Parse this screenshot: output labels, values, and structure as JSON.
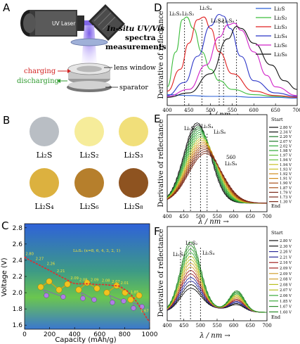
{
  "panels": {
    "A": {
      "letter": "A",
      "laser": "UV Laser",
      "title_line1": "In-situ UV/Vis",
      "title_line2": "spectra",
      "title_line3": "measurements",
      "lens_window": "lens window",
      "separator": "sparator",
      "charging": "charging",
      "discharging": "discharging"
    },
    "B": {
      "letter": "B",
      "swatches": [
        {
          "label": "Li₂S",
          "color": "#b9bec4"
        },
        {
          "label": "Li₂S₂",
          "color": "#f6ec9a"
        },
        {
          "label": "Li₂S₃",
          "color": "#f1df7a"
        },
        {
          "label": "Li₂S₄",
          "color": "#dcb13f"
        },
        {
          "label": "Li₂S₆",
          "color": "#b67f2c"
        },
        {
          "label": "Li₂S₈",
          "color": "#8e5320"
        }
      ]
    },
    "C": {
      "letter": "C",
      "formula": "Li₂Sₓ (x=8, 6, 4, 3, 2, 1)"
    },
    "D": {
      "letter": "D",
      "peak_labels": [
        "Li₂S₃",
        "Li₂S₂",
        "Li₂S₄",
        "Li₂S₆",
        "Li₂S₈"
      ]
    },
    "E": {
      "letter": "E",
      "peak_labels": [
        "Li₂S₃",
        "Li₂S₄",
        "Li₂S₆",
        "560",
        "Li₂S₈"
      ],
      "legend_title": "Start",
      "legend_end": "End",
      "voltages": [
        "2.80 V",
        "2.34 V",
        "2.20 V",
        "2.07 V",
        "2.02 V",
        "1.98 V",
        "1.97 V",
        "1.94 V",
        "1.94 V",
        "1.93 V",
        "1.92 V",
        "1.91 V",
        "1.90 V",
        "1.87 V",
        "1.79 V",
        "1.73 V",
        "1.30 V"
      ]
    },
    "F": {
      "letter": "F",
      "peak_labels": [
        "Li₂S₃",
        "Li₂S₂",
        "Li₂S₄"
      ],
      "legend_title": "Start",
      "legend_end": "End",
      "voltages": [
        "2.80 V",
        "2.30 V",
        "2.26 V",
        "2.21 V",
        "2.16 V",
        "2.09 V",
        "2.09 V",
        "2.08 V",
        "2.08 V",
        "2.07 V",
        "2.06 V",
        "1.85 V",
        "1.67 V",
        "1.60 V"
      ]
    }
  },
  "chart_data": [
    {
      "type": "line",
      "panel": "C",
      "xlabel": "Capacity (mAh/g)",
      "ylabel": "Voltage (V)",
      "xlim": [
        0,
        1000
      ],
      "ylim": [
        1.55,
        2.85
      ],
      "xticks": [
        "0",
        "200",
        "400",
        "600",
        "800",
        "1000"
      ],
      "yticks": [
        "1.6",
        "1.8",
        "2.0",
        "2.2",
        "2.4",
        "2.6",
        "2.8"
      ],
      "x": [
        0,
        40,
        80,
        130,
        180,
        240,
        300,
        340,
        380,
        420,
        460,
        520,
        580,
        640,
        700,
        760,
        820,
        860,
        900,
        940,
        980,
        1000
      ],
      "y": [
        2.44,
        2.4,
        2.37,
        2.33,
        2.29,
        2.24,
        2.19,
        2.16,
        2.12,
        2.11,
        2.11,
        2.11,
        2.1,
        2.1,
        2.09,
        2.08,
        2.02,
        1.96,
        1.88,
        1.78,
        1.68,
        1.64
      ],
      "markers": [
        {
          "x": 40,
          "y": 2.42,
          "label": "2.80"
        },
        {
          "x": 120,
          "y": 2.36,
          "label": "2.27"
        },
        {
          "x": 210,
          "y": 2.3,
          "label": "2.26"
        },
        {
          "x": 290,
          "y": 2.21,
          "label": "2.21"
        },
        {
          "x": 400,
          "y": 2.12,
          "label": "2.09"
        },
        {
          "x": 470,
          "y": 2.1,
          "label": "2.08"
        },
        {
          "x": 560,
          "y": 2.1,
          "label": "2.09"
        },
        {
          "x": 650,
          "y": 2.09,
          "label": "2.08"
        },
        {
          "x": 730,
          "y": 2.08,
          "label": "2.07"
        },
        {
          "x": 800,
          "y": 2.06,
          "label": "2.01"
        },
        {
          "x": 880,
          "y": 1.95,
          "label": "1.85"
        },
        {
          "x": 960,
          "y": 1.72,
          "label": "1.67"
        }
      ]
    },
    {
      "type": "line",
      "panel": "D",
      "xlabel": "λ / nm →",
      "ylabel": "Derivative of reflectance",
      "xlim": [
        400,
        700
      ],
      "xticks": [
        "400",
        "450",
        "500",
        "550",
        "600",
        "650",
        "700"
      ],
      "series": [
        {
          "name": "Li₂S",
          "color": "#2a5fd6",
          "x": [
            400,
            450,
            500,
            550,
            600,
            650,
            700
          ],
          "y": [
            0.06,
            0.05,
            0.04,
            0.04,
            0.03,
            0.03,
            0.02
          ]
        },
        {
          "name": "Li₂S₂",
          "color": "#3cbd3c",
          "x": [
            400,
            420,
            435,
            445,
            460,
            480,
            500,
            520,
            550,
            600,
            650,
            700
          ],
          "y": [
            0.15,
            0.55,
            0.92,
            0.95,
            0.82,
            0.55,
            0.35,
            0.22,
            0.12,
            0.06,
            0.04,
            0.03
          ]
        },
        {
          "name": "Li₂S₃",
          "color": "#e02020",
          "x": [
            400,
            430,
            450,
            470,
            485,
            500,
            520,
            550,
            600,
            650,
            700
          ],
          "y": [
            0.1,
            0.35,
            0.65,
            0.92,
            0.95,
            0.82,
            0.55,
            0.3,
            0.1,
            0.05,
            0.03
          ]
        },
        {
          "name": "Li₂S₄",
          "color": "#2b35c8",
          "x": [
            400,
            440,
            470,
            500,
            520,
            530,
            545,
            570,
            600,
            650,
            700
          ],
          "y": [
            0.05,
            0.2,
            0.5,
            0.85,
            0.98,
            0.96,
            0.82,
            0.5,
            0.22,
            0.08,
            0.04
          ]
        },
        {
          "name": "Li₂S₆",
          "color": "#d020c8",
          "x": [
            400,
            450,
            490,
            520,
            540,
            555,
            570,
            600,
            630,
            650,
            700
          ],
          "y": [
            0.04,
            0.12,
            0.4,
            0.72,
            0.86,
            0.88,
            0.8,
            0.55,
            0.28,
            0.15,
            0.05
          ]
        },
        {
          "name": "Li₂S₈",
          "color": "#111111",
          "x": [
            400,
            450,
            500,
            540,
            560,
            570,
            600,
            640,
            670,
            700
          ],
          "y": [
            0.03,
            0.08,
            0.3,
            0.7,
            0.84,
            0.82,
            0.65,
            0.4,
            0.22,
            0.12
          ]
        }
      ]
    },
    {
      "type": "line",
      "panel": "E",
      "xlabel": "λ / nm →",
      "ylabel": "Derivative of reflectance",
      "xlim": [
        400,
        700
      ],
      "xticks": [
        "400",
        "450",
        "500",
        "550",
        "600",
        "650",
        "700"
      ],
      "series_count": 17
    },
    {
      "type": "line",
      "panel": "F",
      "xlabel": "λ / nm →",
      "ylabel": "Derivative of reflectance",
      "xlim": [
        400,
        700
      ],
      "xticks": [
        "400",
        "450",
        "500",
        "550",
        "600",
        "650",
        "700"
      ],
      "series_count": 14
    }
  ]
}
